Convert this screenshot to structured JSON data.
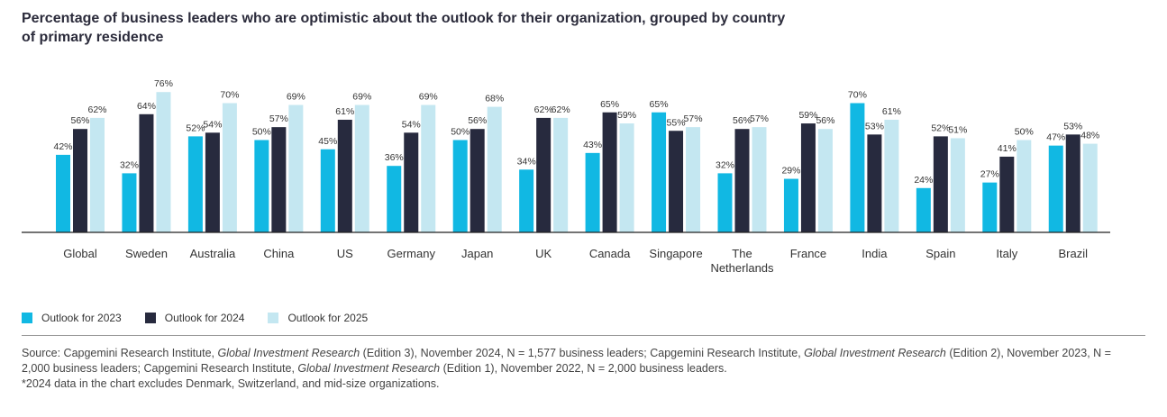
{
  "title": "Percentage of business leaders who are optimistic about the outlook for their organization, grouped by country of primary residence",
  "colors": {
    "s2023": "#11b8e3",
    "s2024": "#272a3e",
    "s2025": "#c4e7f1",
    "axis": "#222222"
  },
  "legend": [
    {
      "label": "Outlook for 2023",
      "color": "#11b8e3"
    },
    {
      "label": "Outlook for 2024",
      "color": "#272a3e"
    },
    {
      "label": "Outlook for 2025",
      "color": "#c4e7f1"
    }
  ],
  "source": {
    "p1": "Source: Capgemini Research Institute, ",
    "i1": "Global Investment Research",
    "p2": " (Edition 3), November 2024, N = 1,577 business leaders; Capgemini Research Institute, ",
    "i2": "Global Investment Research",
    "p3": " (Edition 2), November 2023, N = 2,000 business leaders; Capgemini Research Institute, ",
    "i3": "Global Investment Research",
    "p4": " (Edition 1), November 2022, N = 2,000 business leaders.",
    "note": "*2024 data in the chart excludes Denmark, Switzerland, and mid-size organizations."
  },
  "chart_data": {
    "type": "bar",
    "title": "Percentage of business leaders who are optimistic about the outlook for their organization, grouped by country of primary residence",
    "categories": [
      "Global",
      "Sweden",
      "Australia",
      "China",
      "US",
      "Germany",
      "Japan",
      "UK",
      "Canada",
      "Singapore",
      "The Netherlands",
      "France",
      "India",
      "Spain",
      "Italy",
      "Brazil"
    ],
    "series": [
      {
        "name": "Outlook for 2023",
        "values": [
          42,
          32,
          52,
          50,
          45,
          36,
          50,
          34,
          43,
          65,
          32,
          29,
          70,
          24,
          27,
          47
        ]
      },
      {
        "name": "Outlook for 2024",
        "values": [
          56,
          64,
          54,
          57,
          61,
          54,
          56,
          62,
          65,
          55,
          56,
          59,
          53,
          52,
          41,
          53
        ]
      },
      {
        "name": "Outlook for 2025",
        "values": [
          62,
          76,
          70,
          69,
          69,
          69,
          68,
          62,
          59,
          57,
          57,
          56,
          61,
          51,
          50,
          48
        ]
      }
    ],
    "value_suffix": "%",
    "ylim": [
      0,
      76
    ],
    "grid": false,
    "legend_position": "bottom-left"
  }
}
